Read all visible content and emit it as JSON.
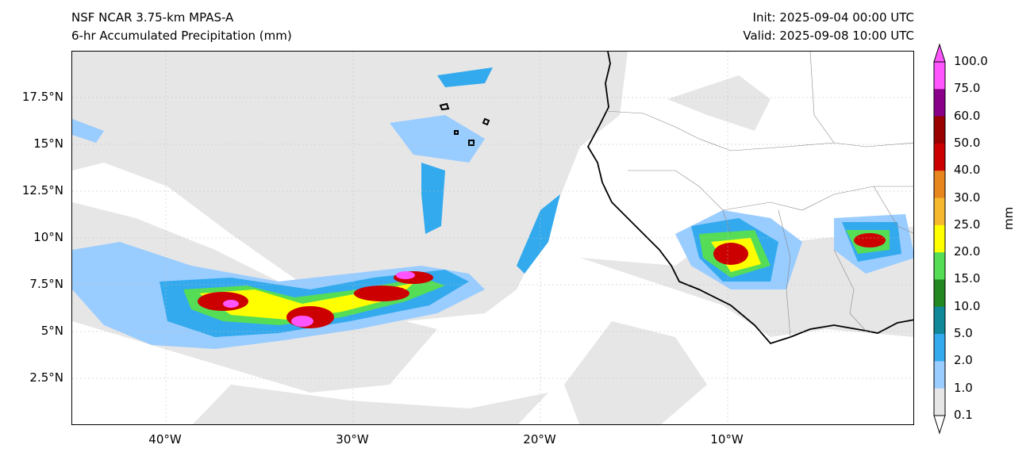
{
  "header": {
    "model": "NSF NCAR 3.75-km MPAS-A",
    "field": "6-hr Accumulated Precipitation (mm)",
    "init": "Init: 2025-09-04 00:00 UTC",
    "valid": "Valid: 2025-09-08 10:00 UTC"
  },
  "axes": {
    "lat_ticks": [
      "17.5°N",
      "15°N",
      "12.5°N",
      "10°N",
      "7.5°N",
      "5°N",
      "2.5°N"
    ],
    "lon_ticks": [
      "40°W",
      "30°W",
      "20°W",
      "10°W"
    ]
  },
  "colorbar": {
    "unit": "mm",
    "levels": [
      "100.0",
      "75.0",
      "60.0",
      "50.0",
      "40.0",
      "30.0",
      "25.0",
      "20.0",
      "15.0",
      "10.0",
      "5.0",
      "2.0",
      "1.0",
      "0.1"
    ],
    "colors": [
      "#ff55ff",
      "#880088",
      "#990000",
      "#cc0000",
      "#e8861e",
      "#f5b82e",
      "#ffff00",
      "#55dd55",
      "#228822",
      "#118899",
      "#33aaee",
      "#99ccff",
      "#e6e6e6"
    ]
  },
  "colors": {
    "background_cloud": "#e6e6e6",
    "light_rain": "#99ccff",
    "rain": "#33aaee",
    "heavy": "#cc0000",
    "extreme": "#ff55ff",
    "coast": "#000000"
  }
}
